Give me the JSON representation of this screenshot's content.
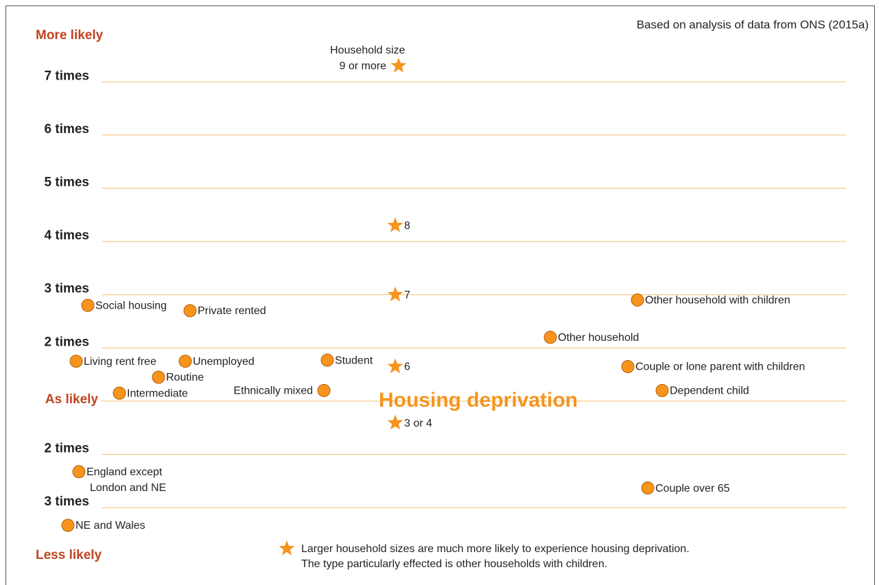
{
  "chart_data": {
    "type": "scatter",
    "title": "Housing deprivation",
    "source": "Based on analysis of data from ONS (2015a)",
    "top_label": "More likely",
    "bottom_label": "Less likely",
    "star_heading": "Household size",
    "note": [
      "Larger household sizes are much more likely to experience housing deprivation.",
      "The type particularly effected is other households with children."
    ],
    "color": "#f7941d",
    "grid": true,
    "ylim": [
      0.3,
      7.3
    ],
    "yticks": [
      {
        "value": 7,
        "label": "7 times"
      },
      {
        "value": 6,
        "label": "6 times"
      },
      {
        "value": 5,
        "label": "5 times"
      },
      {
        "value": 4,
        "label": "4 times"
      },
      {
        "value": 3,
        "label": "3 times"
      },
      {
        "value": 2,
        "label": "2 times"
      },
      {
        "value": 1,
        "label": "As likely"
      },
      {
        "value": 0.5,
        "label": "2 times"
      },
      {
        "value": 0.3333,
        "label": "3 times"
      }
    ],
    "points": [
      {
        "label": [
          "9 or more"
        ],
        "marker": "star",
        "y": 7.3
      },
      {
        "label": [
          "8"
        ],
        "marker": "star",
        "y": 4.3
      },
      {
        "label": [
          "7"
        ],
        "marker": "star",
        "y": 3.0
      },
      {
        "label": [
          "6"
        ],
        "marker": "star",
        "y": 1.65
      },
      {
        "label": [
          "3 or 4"
        ],
        "marker": "star",
        "y": 0.71
      },
      {
        "label": [
          "Social housing"
        ],
        "marker": "circle",
        "y": 2.8
      },
      {
        "label": [
          "Private rented"
        ],
        "marker": "circle",
        "y": 2.7
      },
      {
        "label": [
          "Other household with children"
        ],
        "marker": "circle",
        "y": 2.9
      },
      {
        "label": [
          "Other household"
        ],
        "marker": "circle",
        "y": 2.2
      },
      {
        "label": [
          "Living rent free"
        ],
        "marker": "circle",
        "y": 1.75
      },
      {
        "label": [
          "Unemployed"
        ],
        "marker": "circle",
        "y": 1.75
      },
      {
        "label": [
          "Student"
        ],
        "marker": "circle",
        "y": 1.77
      },
      {
        "label": [
          "Couple or lone parent with children"
        ],
        "marker": "circle",
        "y": 1.65
      },
      {
        "label": [
          "Routine"
        ],
        "marker": "circle",
        "y": 1.45
      },
      {
        "label": [
          "Intermediate"
        ],
        "marker": "circle",
        "y": 1.15
      },
      {
        "label": [
          "Ethnically mixed"
        ],
        "marker": "circle",
        "y": 1.2
      },
      {
        "label": [
          "Dependent child"
        ],
        "marker": "circle",
        "y": 1.2
      },
      {
        "label": [
          "England except",
          "London and NE"
        ],
        "marker": "circle",
        "y": 0.43
      },
      {
        "label": [
          "Couple over 65"
        ],
        "marker": "circle",
        "y": 0.38
      },
      {
        "label": [
          "NE and Wales"
        ],
        "marker": "circle",
        "y": 0.3
      }
    ]
  }
}
